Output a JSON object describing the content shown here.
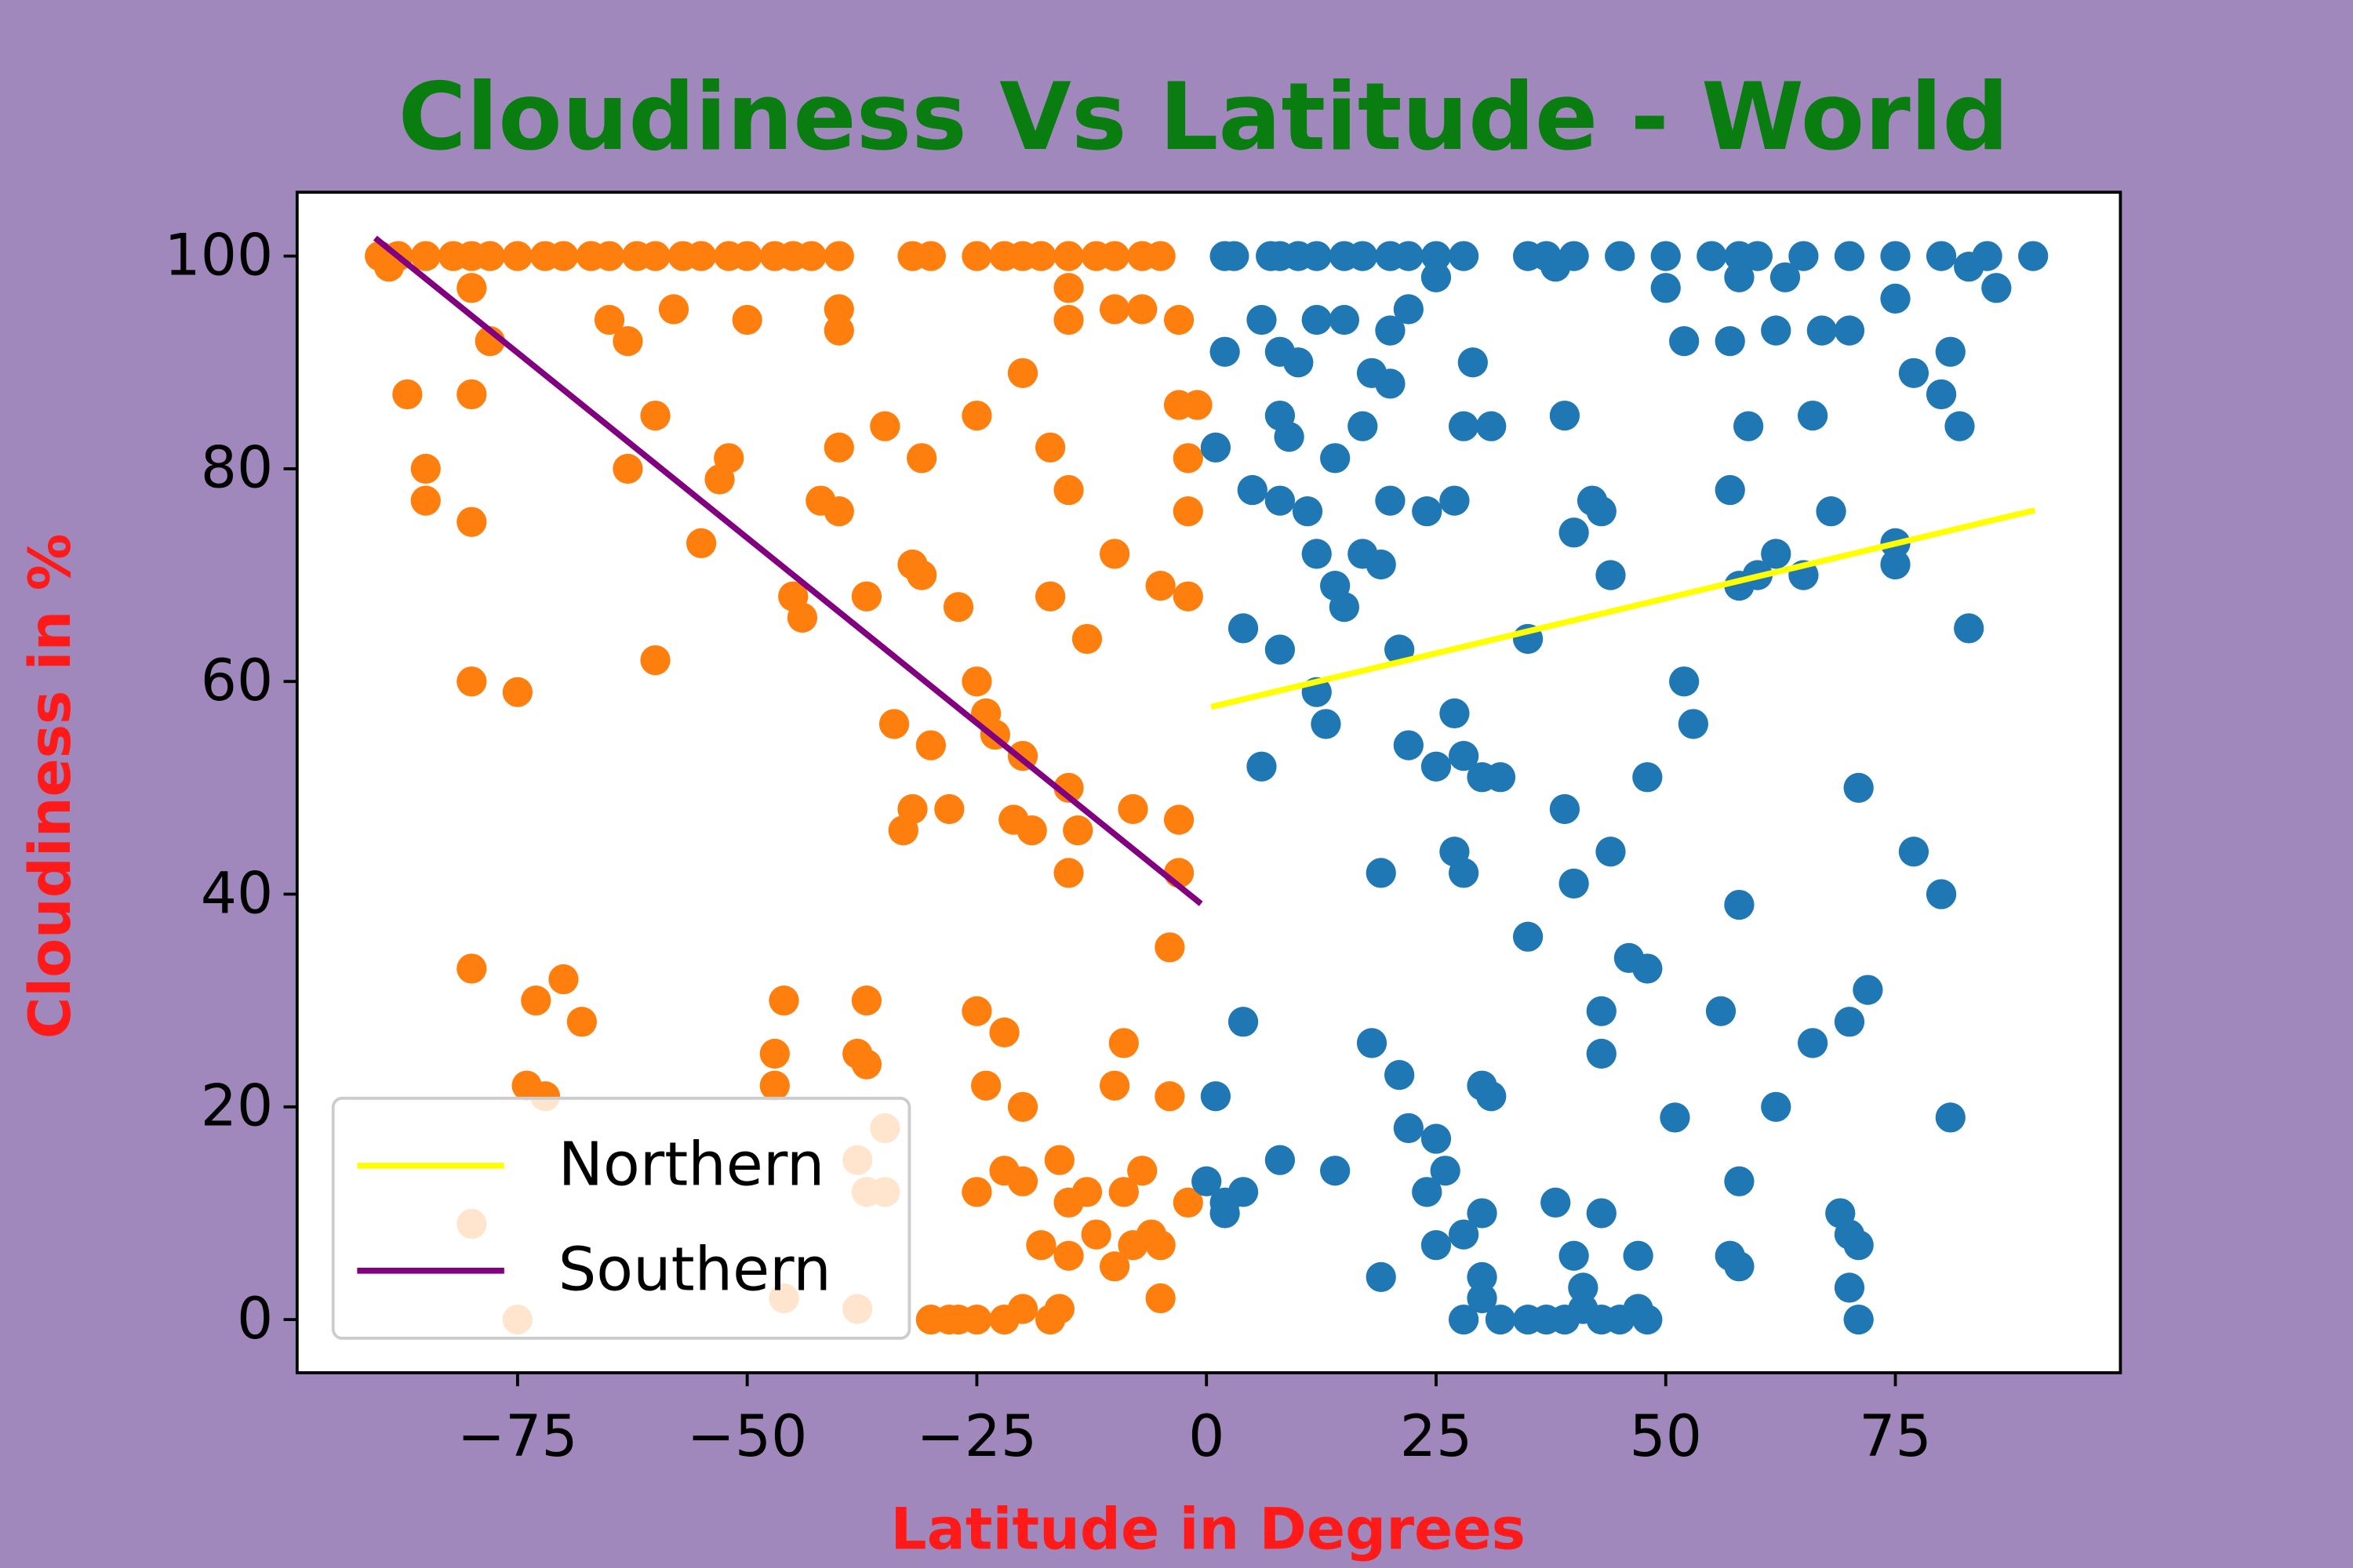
{
  "chart_data": {
    "type": "scatter",
    "title": "Cloudiness Vs Latitude - World",
    "xlabel": "Latitude in Degrees",
    "ylabel": "Cloudiness in %",
    "xlim": [
      -99,
      99.5
    ],
    "ylim": [
      -5,
      106
    ],
    "xticks": [
      {
        "value": -75,
        "label": "−75"
      },
      {
        "value": -50,
        "label": "−50"
      },
      {
        "value": -25,
        "label": "−25"
      },
      0,
      25,
      50,
      75
    ],
    "yticks": [
      0,
      20,
      40,
      60,
      80,
      100
    ],
    "legend": "lower left",
    "series": [
      {
        "color": "#ff7f0e",
        "x": [
          -90,
          -88,
          -85,
          -82,
          -80,
          -78,
          -75,
          -72,
          -70,
          -67,
          -65,
          -62,
          -60,
          -57,
          -55,
          -52,
          -50,
          -47,
          -45,
          -43,
          -40,
          -32,
          -30,
          -25,
          -22,
          -20,
          -18,
          -15,
          -12,
          -10,
          -7,
          -5,
          -89,
          -80,
          -78,
          -65,
          -63,
          -58,
          -50,
          -40,
          -40,
          -15,
          -15,
          -10,
          -7,
          -3,
          -20,
          -87,
          -80,
          -3,
          -1,
          -85,
          -85,
          -80,
          -63,
          -60,
          -53,
          -52,
          -40,
          -35,
          -31,
          -25,
          -17,
          -15,
          -2,
          -2,
          -55,
          -42,
          -40,
          -32,
          -31,
          -10,
          -5,
          -2,
          -45,
          -44,
          -37,
          -27,
          -17,
          -13,
          -60,
          -80,
          -75,
          -25,
          -24,
          -34,
          -23,
          -30,
          -20,
          -15,
          -32,
          -28,
          -33,
          -21,
          -19,
          -14,
          -8,
          -3,
          -15,
          -3,
          -4,
          -80,
          -70,
          -73,
          -68,
          -46,
          -37,
          -25,
          -22,
          -9,
          -47,
          -47,
          -38,
          -37,
          -74,
          -72,
          -24,
          -20,
          -10,
          -4,
          -35,
          -38,
          -37,
          -35,
          -80,
          -16,
          -7,
          -25,
          -22,
          -20,
          -15,
          -13,
          -9,
          -2,
          -18,
          -15,
          -12,
          -10,
          -8,
          -6,
          -5,
          -75,
          -46,
          -38,
          -30,
          -28,
          -25,
          -22,
          -20,
          -17,
          -16,
          -5,
          -27
        ],
        "values": [
          100,
          100,
          100,
          100,
          100,
          100,
          100,
          100,
          100,
          100,
          100,
          100,
          100,
          100,
          100,
          100,
          100,
          100,
          100,
          100,
          100,
          100,
          100,
          100,
          100,
          100,
          100,
          100,
          100,
          100,
          100,
          100,
          99,
          97,
          92,
          94,
          92,
          95,
          94,
          95,
          93,
          97,
          94,
          95,
          95,
          94,
          89,
          87,
          87,
          86,
          86,
          80,
          77,
          75,
          80,
          85,
          79,
          81,
          82,
          84,
          81,
          85,
          82,
          78,
          81,
          76,
          73,
          77,
          76,
          71,
          70,
          72,
          69,
          68,
          68,
          66,
          68,
          67,
          68,
          64,
          62,
          60,
          59,
          60,
          57,
          56,
          55,
          54,
          53,
          50,
          48,
          48,
          46,
          47,
          46,
          46,
          48,
          47,
          42,
          42,
          35,
          33,
          32,
          30,
          28,
          30,
          30,
          29,
          27,
          26,
          25,
          22,
          25,
          24,
          22,
          21,
          22,
          20,
          22,
          21,
          18,
          15,
          12,
          12,
          9,
          15,
          14,
          12,
          14,
          13,
          11,
          12,
          12,
          11,
          7,
          6,
          8,
          5,
          7,
          8,
          7,
          0,
          2,
          1,
          0,
          0,
          0,
          0,
          1,
          0,
          1,
          2,
          0
        ]
      },
      {
        "color": "#1f77b4",
        "x": [
          2,
          3,
          7,
          8,
          10,
          12,
          15,
          17,
          20,
          22,
          25,
          28,
          35,
          37,
          40,
          45,
          50,
          55,
          58,
          60,
          65,
          70,
          75,
          80,
          85,
          90,
          38,
          50,
          58,
          63,
          75,
          83,
          86,
          2,
          8,
          10,
          6,
          12,
          15,
          20,
          22,
          25,
          52,
          57,
          62,
          67,
          70,
          77,
          80,
          81,
          20,
          18,
          29,
          8,
          9,
          14,
          17,
          1,
          28,
          31,
          39,
          59,
          66,
          82,
          5,
          8,
          11,
          20,
          24,
          27,
          57,
          62,
          60,
          58,
          68,
          42,
          43,
          40,
          44,
          65,
          75,
          75,
          12,
          14,
          15,
          17,
          19,
          4,
          8,
          21,
          35,
          83,
          12,
          13,
          6,
          22,
          25,
          27,
          28,
          30,
          32,
          52,
          53,
          48,
          71,
          39,
          19,
          27,
          28,
          40,
          44,
          35,
          46,
          48,
          58,
          77,
          80,
          4,
          43,
          56,
          70,
          72,
          18,
          66,
          1,
          21,
          30,
          31,
          43,
          51,
          62,
          81,
          8,
          14,
          22,
          25,
          26,
          0,
          2,
          4,
          2,
          24,
          28,
          25,
          30,
          38,
          43,
          58,
          57,
          58,
          47,
          69,
          70,
          71,
          19,
          30,
          40,
          41,
          70,
          71,
          28,
          30,
          32,
          35,
          37,
          39,
          41,
          43,
          45,
          47,
          48
        ],
        "values": [
          100,
          100,
          100,
          100,
          100,
          100,
          100,
          100,
          100,
          100,
          100,
          100,
          100,
          100,
          100,
          100,
          100,
          100,
          100,
          100,
          100,
          100,
          100,
          100,
          100,
          100,
          99,
          97,
          98,
          98,
          96,
          99,
          97,
          91,
          91,
          90,
          94,
          94,
          94,
          93,
          95,
          98,
          92,
          92,
          93,
          93,
          93,
          89,
          87,
          91,
          88,
          89,
          90,
          85,
          83,
          81,
          84,
          82,
          84,
          84,
          85,
          84,
          85,
          84,
          78,
          77,
          76,
          77,
          76,
          77,
          78,
          72,
          70,
          69,
          76,
          77,
          76,
          74,
          70,
          70,
          73,
          71,
          72,
          69,
          67,
          72,
          71,
          65,
          63,
          63,
          64,
          65,
          59,
          56,
          52,
          54,
          52,
          57,
          53,
          51,
          51,
          60,
          56,
          51,
          50,
          48,
          42,
          44,
          42,
          41,
          44,
          36,
          34,
          33,
          39,
          44,
          40,
          28,
          29,
          29,
          28,
          31,
          26,
          26,
          21,
          23,
          22,
          21,
          25,
          19,
          20,
          19,
          15,
          14,
          18,
          17,
          14,
          13,
          11,
          12,
          10,
          12,
          8,
          7,
          10,
          11,
          10,
          13,
          6,
          5,
          6,
          10,
          8,
          7,
          4,
          4,
          6,
          3,
          3,
          0,
          0,
          2,
          0,
          0,
          0,
          0,
          1,
          0,
          0,
          1,
          0
        ]
      },
      {
        "name": "Northern",
        "type": "line",
        "color": "yellow",
        "x": [
          0.5,
          90.2
        ],
        "values": [
          57.6,
          76.1
        ]
      },
      {
        "name": "Southern",
        "type": "line",
        "color": "purple",
        "x": [
          -90.5,
          -0.6
        ],
        "values": [
          101.7,
          39.1
        ]
      }
    ]
  }
}
